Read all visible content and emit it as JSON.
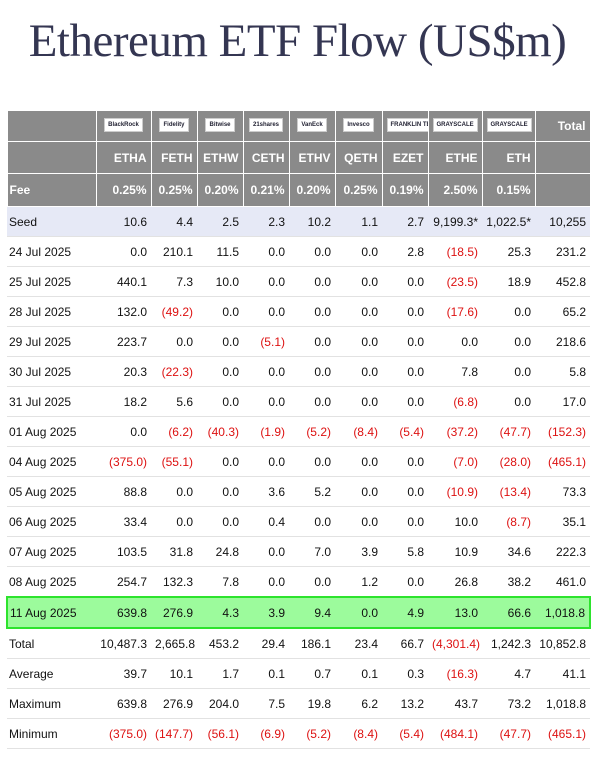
{
  "title": "Ethereum ETF Flow (US$m)",
  "header": {
    "logos": [
      "BlackRock",
      "Fidelity",
      "Bitwise",
      "21shares",
      "VanEck",
      "Invesco",
      "FRANKLIN TEMPLETON",
      "GRAYSCALE",
      "GRAYSCALE"
    ],
    "total": "Total",
    "tickers": [
      "ETHA",
      "FETH",
      "ETHW",
      "CETH",
      "ETHV",
      "QETH",
      "EZET",
      "ETHE",
      "ETH"
    ],
    "fee_label": "Fee",
    "fees": [
      "0.25%",
      "0.25%",
      "0.20%",
      "0.21%",
      "0.20%",
      "0.25%",
      "0.19%",
      "2.50%",
      "0.15%"
    ]
  },
  "rows": [
    [
      "Seed",
      "10.6",
      "4.4",
      "2.5",
      "2.3",
      "10.2",
      "1.1",
      "2.7",
      "9,199.3*",
      "1,022.5*",
      "10,255"
    ],
    [
      "24 Jul 2025",
      "0.0",
      "210.1",
      "11.5",
      "0.0",
      "0.0",
      "0.0",
      "2.8",
      "(18.5)",
      "25.3",
      "231.2"
    ],
    [
      "25 Jul 2025",
      "440.1",
      "7.3",
      "10.0",
      "0.0",
      "0.0",
      "0.0",
      "0.0",
      "(23.5)",
      "18.9",
      "452.8"
    ],
    [
      "28 Jul 2025",
      "132.0",
      "(49.2)",
      "0.0",
      "0.0",
      "0.0",
      "0.0",
      "0.0",
      "(17.6)",
      "0.0",
      "65.2"
    ],
    [
      "29 Jul 2025",
      "223.7",
      "0.0",
      "0.0",
      "(5.1)",
      "0.0",
      "0.0",
      "0.0",
      "0.0",
      "0.0",
      "218.6"
    ],
    [
      "30 Jul 2025",
      "20.3",
      "(22.3)",
      "0.0",
      "0.0",
      "0.0",
      "0.0",
      "0.0",
      "7.8",
      "0.0",
      "5.8"
    ],
    [
      "31 Jul 2025",
      "18.2",
      "5.6",
      "0.0",
      "0.0",
      "0.0",
      "0.0",
      "0.0",
      "(6.8)",
      "0.0",
      "17.0"
    ],
    [
      "01 Aug 2025",
      "0.0",
      "(6.2)",
      "(40.3)",
      "(1.9)",
      "(5.2)",
      "(8.4)",
      "(5.4)",
      "(37.2)",
      "(47.7)",
      "(152.3)"
    ],
    [
      "04 Aug 2025",
      "(375.0)",
      "(55.1)",
      "0.0",
      "0.0",
      "0.0",
      "0.0",
      "0.0",
      "(7.0)",
      "(28.0)",
      "(465.1)"
    ],
    [
      "05 Aug 2025",
      "88.8",
      "0.0",
      "0.0",
      "3.6",
      "5.2",
      "0.0",
      "0.0",
      "(10.9)",
      "(13.4)",
      "73.3"
    ],
    [
      "06 Aug 2025",
      "33.4",
      "0.0",
      "0.0",
      "0.4",
      "0.0",
      "0.0",
      "0.0",
      "10.0",
      "(8.7)",
      "35.1"
    ],
    [
      "07 Aug 2025",
      "103.5",
      "31.8",
      "24.8",
      "0.0",
      "7.0",
      "3.9",
      "5.8",
      "10.9",
      "34.6",
      "222.3"
    ],
    [
      "08 Aug 2025",
      "254.7",
      "132.3",
      "7.8",
      "0.0",
      "0.0",
      "1.2",
      "0.0",
      "26.8",
      "38.2",
      "461.0"
    ],
    [
      "11 Aug 2025",
      "639.8",
      "276.9",
      "4.3",
      "3.9",
      "9.4",
      "0.0",
      "4.9",
      "13.0",
      "66.6",
      "1,018.8"
    ]
  ],
  "summary": [
    [
      "Total",
      "10,487.3",
      "2,665.8",
      "453.2",
      "29.4",
      "186.1",
      "23.4",
      "66.7",
      "(4,301.4)",
      "1,242.3",
      "10,852.8"
    ],
    [
      "Average",
      "39.7",
      "10.1",
      "1.7",
      "0.1",
      "0.7",
      "0.1",
      "0.3",
      "(16.3)",
      "4.7",
      "41.1"
    ],
    [
      "Maximum",
      "639.8",
      "276.9",
      "204.0",
      "7.5",
      "19.8",
      "6.2",
      "13.2",
      "43.7",
      "73.2",
      "1,018.8"
    ],
    [
      "Minimum",
      "(375.0)",
      "(147.7)",
      "(56.1)",
      "(6.9)",
      "(5.2)",
      "(8.4)",
      "(5.4)",
      "(484.1)",
      "(47.7)",
      "(465.1)"
    ]
  ]
}
